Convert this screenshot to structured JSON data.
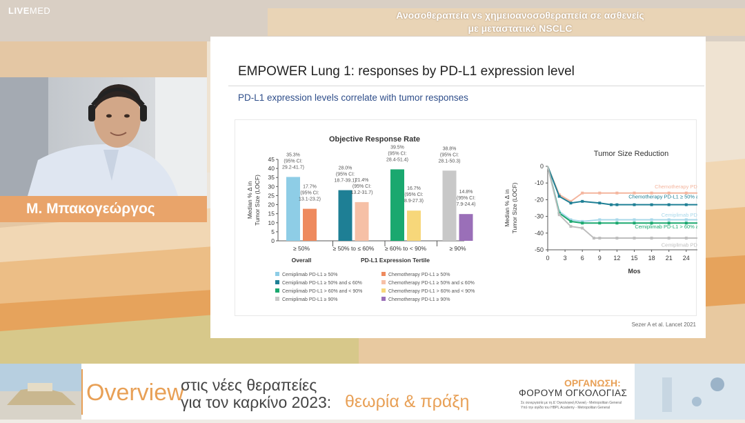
{
  "brand": {
    "bold": "LIVE",
    "rest": "MED"
  },
  "topbar": {
    "line1": "Ανοσοθεραπεία vs χημειοανοσοθεραπεία σε ασθενείς",
    "line2": "με μεταστατικό NSCLC"
  },
  "speaker": {
    "name": "Μ. Μπακογεώργος"
  },
  "slide": {
    "title": "EMPOWER Lung 1: responses by PD-L1 expression level",
    "subtitle": "PD-L1 expression levels correlate with tumor responses",
    "reference": "Sezer A et al. Lancet 2021"
  },
  "colors": {
    "cem50": "#8ecde6",
    "chemo50": "#ee8a5e",
    "cem5060": "#1e7f95",
    "chemo5060": "#f6c0a6",
    "cem6090": "#1aa86f",
    "chemo6090": "#f7d77a",
    "cem90": "#c8c8c8",
    "chemo90": "#9a6fb8"
  },
  "chart_data": [
    {
      "type": "bar",
      "title": "Objective Response Rate",
      "ylabel": "Median % Δ in Tumor Size (LOCF)",
      "xlabel": "PD-L1 Expression Tertile",
      "ylim": [
        0,
        45
      ],
      "yticks": [
        0,
        5,
        10,
        15,
        20,
        25,
        30,
        35,
        40,
        45
      ],
      "groups": [
        {
          "label": "≥ 50%",
          "sublabel": "Overall",
          "bars": [
            {
              "value": 35.3,
              "label1": "35.3%",
              "label2": "(95% CI:",
              "label3": "29.2-41.7)",
              "color": "#8ecde6"
            },
            {
              "value": 17.7,
              "label1": "17.7%",
              "label2": "(95% CI:",
              "label3": "13.1-23.2)",
              "color": "#ee8a5e"
            }
          ]
        },
        {
          "label": "≥ 50% to ≤ 60%",
          "sublabel": "",
          "bars": [
            {
              "value": 28.0,
              "label1": "28.0%",
              "label2": "(95% CI:",
              "label3": "18.7-39.1)",
              "color": "#1e7f95"
            },
            {
              "value": 21.4,
              "label1": "21.4%",
              "label2": "(95% CI:",
              "label3": "13.2-31.7)",
              "color": "#f6c0a6"
            }
          ]
        },
        {
          "label": "≥ 60% to < 90%",
          "sublabel": "",
          "bars": [
            {
              "value": 39.5,
              "label1": "39.5%",
              "label2": "(95% CI:",
              "label3": "28.4-51.4)",
              "color": "#1aa86f"
            },
            {
              "value": 16.7,
              "label1": "16.7%",
              "label2": "(95% CI:",
              "label3": "8.9-27.3)",
              "color": "#f7d77a"
            }
          ]
        },
        {
          "label": "≥ 90%",
          "sublabel": "",
          "bars": [
            {
              "value": 38.8,
              "label1": "38.8%",
              "label2": "(95% CI:",
              "label3": "28.1-50.3)",
              "color": "#c8c8c8"
            },
            {
              "value": 14.8,
              "label1": "14.8%",
              "label2": "(95% CI:",
              "label3": "7.9-24.4)",
              "color": "#9a6fb8"
            }
          ]
        }
      ],
      "legend": [
        {
          "label": "Cemiplimab PD-L1 ≥ 50%",
          "color": "#8ecde6"
        },
        {
          "label": "Chemotherapy PD-L1 ≥ 50%",
          "color": "#ee8a5e"
        },
        {
          "label": "Cemiplimab PD-L1 ≥ 50% and ≤ 60%",
          "color": "#1e7f95"
        },
        {
          "label": "Chemotherapy PD-L1 ≥ 50% and ≤ 60%",
          "color": "#f6c0a6"
        },
        {
          "label": "Cemiplimab PD-L1 > 60% and < 90%",
          "color": "#1aa86f"
        },
        {
          "label": "Chemotherapy PD-L1 > 60% and < 90%",
          "color": "#f7d77a"
        },
        {
          "label": "Cemiplimab PD-L1 ≥ 90%",
          "color": "#c8c8c8"
        },
        {
          "label": "Chemotherapy PD-L1 ≥ 90%",
          "color": "#9a6fb8"
        }
      ]
    },
    {
      "type": "line",
      "title": "Tumor Size Reduction",
      "xlabel": "Mos",
      "ylabel": "Median % Δ in Tumor Size (LOCF)",
      "xlim": [
        0,
        30
      ],
      "ylim": [
        -50,
        0
      ],
      "xticks": [
        0,
        3,
        6,
        9,
        12,
        15,
        18,
        21,
        24,
        27,
        30
      ],
      "yticks": [
        0,
        -10,
        -20,
        -30,
        -40,
        -50
      ],
      "series": [
        {
          "name": "Chemotherapy PD-L1 ≥ 50%",
          "color": "#f4b59e",
          "x": [
            0,
            2,
            4,
            6,
            9,
            12,
            15,
            18,
            21,
            24,
            27
          ],
          "y": [
            0,
            -17,
            -21,
            -16,
            -16,
            -16,
            -16,
            -16,
            -16,
            -16,
            -16
          ]
        },
        {
          "name": "Chemotherapy PD-L1 ≥ 50% and ≤ 60%",
          "color": "#1e7f95",
          "x": [
            0,
            2,
            4,
            6,
            9,
            11,
            12,
            15,
            18,
            21,
            24,
            27
          ],
          "y": [
            0,
            -18,
            -22,
            -21,
            -22,
            -23,
            -23,
            -23,
            -23,
            -23,
            -23,
            -23
          ]
        },
        {
          "name": "Cemiplimab PD-L1 ≥ 50%",
          "color": "#a8d8ea",
          "x": [
            0,
            2,
            4,
            6,
            9,
            12,
            15,
            18,
            21,
            24,
            27
          ],
          "y": [
            0,
            -27,
            -32,
            -33,
            -32,
            -32,
            -32,
            -32,
            -32,
            -32,
            -32
          ]
        },
        {
          "name": "Cemiplimab PD-L1 > 60% and < 90%",
          "color": "#1aa86f",
          "x": [
            0,
            2,
            4,
            6,
            9,
            12,
            15,
            18,
            21,
            24,
            27
          ],
          "y": [
            0,
            -28,
            -33,
            -34,
            -34,
            -34,
            -34,
            -34,
            -34,
            -34,
            -34
          ]
        },
        {
          "name": "Cemiplimab PD-L1 ≥ 90%",
          "color": "#bdbdbd",
          "x": [
            0,
            2,
            4,
            6,
            8,
            9,
            12,
            15,
            18,
            21,
            24,
            27
          ],
          "y": [
            0,
            -29,
            -36,
            -37,
            -43,
            -43,
            -43,
            -43,
            -43,
            -43,
            -43,
            -43
          ]
        }
      ]
    }
  ],
  "footer": {
    "overview": "Overview",
    "desc1": "στις νέες θεραπείες",
    "desc2": "για τον καρκίνο 2023:",
    "practice": "θεωρία & πράξη",
    "org_label": "ΟΡΓΑΝΩΣΗ:",
    "org_name": "ΦΟΡΟΥΜ ΟΓΚΟΛΟΓΙΑΣ",
    "org_line1": "Σε συνεργασία με τη Δ' Ογκολογική Κλινική - Metropolitan General",
    "org_line2": "Υπό την αιγίδα του HBPL Academy - Metropolitan General"
  }
}
